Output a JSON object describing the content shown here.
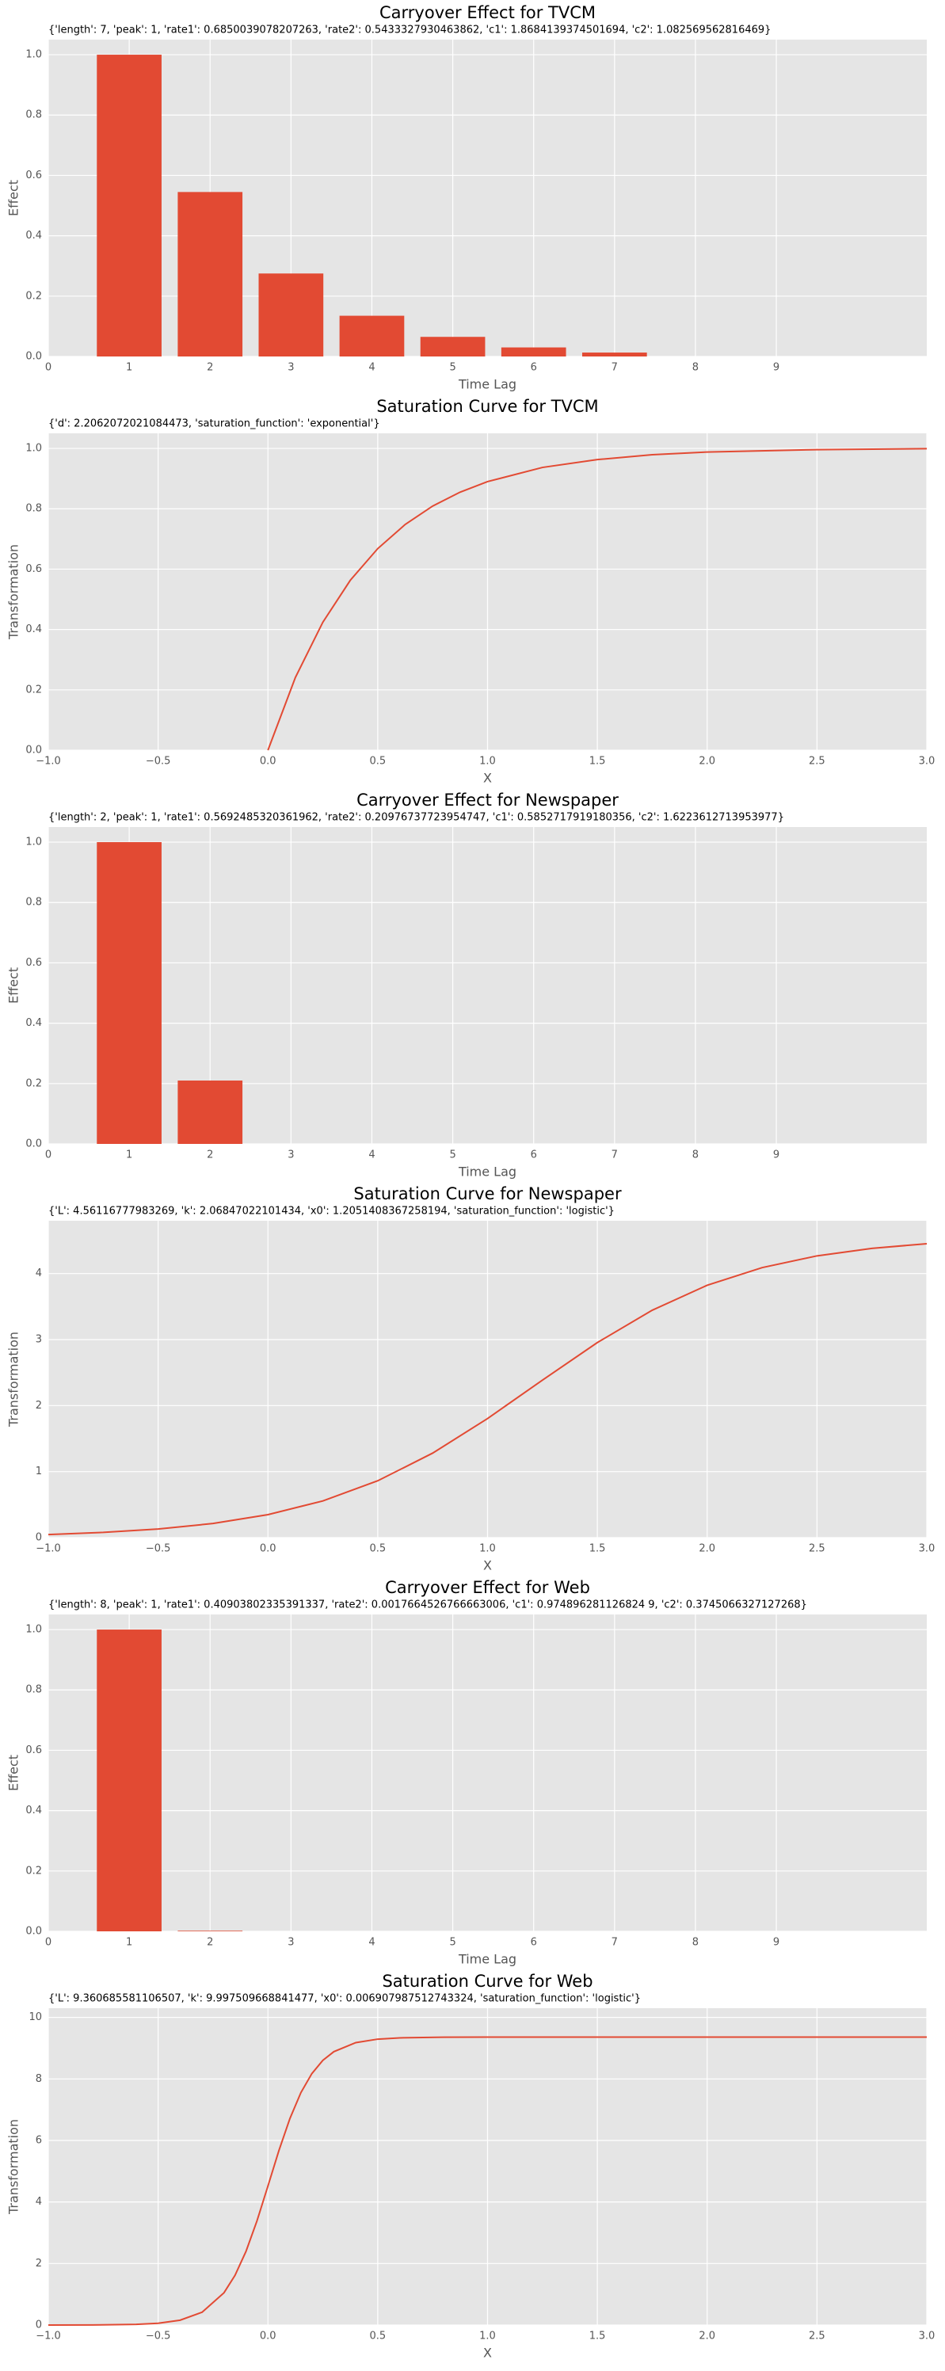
{
  "chart_data": [
    {
      "type": "bar",
      "title": "Carryover Effect for TVCM",
      "annotation": "{'length': 7, 'peak': 1, 'rate1': 0.6850039078207263, 'rate2': 0.5433327930463862, 'c1': 1.8684139374501694, 'c2': 1.082569562816469}",
      "xlabel": "Time Lag",
      "ylabel": "Effect",
      "x": [
        1,
        2,
        3,
        4,
        5,
        6,
        7
      ],
      "values": [
        1.0,
        0.545,
        0.275,
        0.135,
        0.065,
        0.03,
        0.013
      ],
      "color": "#e24a33",
      "grid": true,
      "xlim": [
        0,
        10.86
      ],
      "ylim": [
        0,
        1.05
      ],
      "xticks": [
        0,
        1,
        2,
        3,
        4,
        5,
        6,
        7,
        8,
        9
      ],
      "yticks": [
        {
          "value": 0,
          "label": "0.0"
        },
        {
          "value": 0.2,
          "label": "0.2"
        },
        {
          "value": 0.4,
          "label": "0.4"
        },
        {
          "value": 0.6,
          "label": "0.6"
        },
        {
          "value": 0.8,
          "label": "0.8"
        },
        {
          "value": 1,
          "label": "1.0"
        }
      ]
    },
    {
      "type": "line",
      "title": "Saturation Curve for TVCM",
      "annotation": "{'d': 2.2062072021084473, 'saturation_function': 'exponential'}",
      "xlabel": "X",
      "ylabel": "Transformation",
      "x": [
        0,
        0.125,
        0.25,
        0.375,
        0.5,
        0.625,
        0.75,
        0.875,
        1.0,
        1.25,
        1.5,
        1.75,
        2.0,
        2.5,
        3.0
      ],
      "values": [
        0,
        0.241,
        0.424,
        0.563,
        0.668,
        0.748,
        0.809,
        0.855,
        0.89,
        0.937,
        0.963,
        0.979,
        0.988,
        0.996,
        0.999
      ],
      "color": "#e24a33",
      "grid": true,
      "xlim": [
        -1,
        3
      ],
      "ylim": [
        0,
        1.05
      ],
      "xticks": [
        {
          "value": -1,
          "label": "−1.0"
        },
        {
          "value": -0.5,
          "label": "−0.5"
        },
        {
          "value": 0,
          "label": "0.0"
        },
        {
          "value": 0.5,
          "label": "0.5"
        },
        {
          "value": 1,
          "label": "1.0"
        },
        {
          "value": 1.5,
          "label": "1.5"
        },
        {
          "value": 2,
          "label": "2.0"
        },
        {
          "value": 2.5,
          "label": "2.5"
        },
        {
          "value": 3,
          "label": "3.0"
        }
      ],
      "yticks": [
        {
          "value": 0,
          "label": "0.0"
        },
        {
          "value": 0.2,
          "label": "0.2"
        },
        {
          "value": 0.4,
          "label": "0.4"
        },
        {
          "value": 0.6,
          "label": "0.6"
        },
        {
          "value": 0.8,
          "label": "0.8"
        },
        {
          "value": 1,
          "label": "1.0"
        }
      ]
    },
    {
      "type": "bar",
      "title": "Carryover Effect for Newspaper",
      "annotation": "{'length': 2, 'peak': 1, 'rate1': 0.5692485320361962, 'rate2': 0.20976737723954747, 'c1': 0.5852717919180356, 'c2': 1.6223612713953977}",
      "xlabel": "Time Lag",
      "ylabel": "Effect",
      "x": [
        1,
        2
      ],
      "values": [
        1.0,
        0.21
      ],
      "color": "#e24a33",
      "grid": true,
      "xlim": [
        0,
        10.86
      ],
      "ylim": [
        0,
        1.05
      ],
      "xticks": [
        0,
        1,
        2,
        3,
        4,
        5,
        6,
        7,
        8,
        9
      ],
      "yticks": [
        {
          "value": 0,
          "label": "0.0"
        },
        {
          "value": 0.2,
          "label": "0.2"
        },
        {
          "value": 0.4,
          "label": "0.4"
        },
        {
          "value": 0.6,
          "label": "0.6"
        },
        {
          "value": 0.8,
          "label": "0.8"
        },
        {
          "value": 1,
          "label": "1.0"
        }
      ]
    },
    {
      "type": "line",
      "title": "Saturation Curve for Newspaper",
      "annotation": "{'L': 4.56116777983269, 'k': 2.06847022101434, 'x0': 1.2051408367258194, 'saturation_function': 'logistic'}",
      "xlabel": "X",
      "ylabel": "Transformation",
      "x": [
        -1,
        -0.75,
        -0.5,
        -0.25,
        0,
        0.25,
        0.5,
        0.75,
        1.0,
        1.25,
        1.5,
        1.75,
        2.0,
        2.25,
        2.5,
        2.75,
        3.0
      ],
      "values": [
        0.047,
        0.079,
        0.13,
        0.214,
        0.348,
        0.556,
        0.861,
        1.28,
        1.804,
        2.386,
        2.955,
        3.445,
        3.823,
        4.09,
        4.268,
        4.382,
        4.452
      ],
      "color": "#e24a33",
      "grid": true,
      "xlim": [
        -1,
        3
      ],
      "ylim": [
        0,
        4.8
      ],
      "xticks": [
        {
          "value": -1,
          "label": "−1.0"
        },
        {
          "value": -0.5,
          "label": "−0.5"
        },
        {
          "value": 0,
          "label": "0.0"
        },
        {
          "value": 0.5,
          "label": "0.5"
        },
        {
          "value": 1,
          "label": "1.0"
        },
        {
          "value": 1.5,
          "label": "1.5"
        },
        {
          "value": 2,
          "label": "2.0"
        },
        {
          "value": 2.5,
          "label": "2.5"
        },
        {
          "value": 3,
          "label": "3.0"
        }
      ],
      "yticks": [
        0,
        1,
        2,
        3,
        4
      ]
    },
    {
      "type": "bar",
      "title": "Carryover Effect for Web",
      "annotation": "{'length': 8, 'peak': 1, 'rate1': 0.40903802335391337, 'rate2': 0.0017664526766663006, 'c1': 0.974896281126824 9, 'c2': 0.3745066327127268}",
      "xlabel": "Time Lag",
      "ylabel": "Effect",
      "x": [
        1,
        2
      ],
      "values": [
        1.0,
        0.002
      ],
      "color": "#e24a33",
      "grid": true,
      "xlim": [
        0,
        10.86
      ],
      "ylim": [
        0,
        1.05
      ],
      "xticks": [
        0,
        1,
        2,
        3,
        4,
        5,
        6,
        7,
        8,
        9
      ],
      "yticks": [
        {
          "value": 0,
          "label": "0.0"
        },
        {
          "value": 0.2,
          "label": "0.2"
        },
        {
          "value": 0.4,
          "label": "0.4"
        },
        {
          "value": 0.6,
          "label": "0.6"
        },
        {
          "value": 0.8,
          "label": "0.8"
        },
        {
          "value": 1,
          "label": "1.0"
        }
      ]
    },
    {
      "type": "line",
      "title": "Saturation Curve for Web",
      "annotation": "{'L': 9.360685581106507, 'k': 9.997509668841477, 'x0': 0.006907987512743324, 'saturation_function': 'logistic'}",
      "xlabel": "X",
      "ylabel": "Transformation",
      "x": [
        -1,
        -0.8,
        -0.6,
        -0.5,
        -0.4,
        -0.3,
        -0.2,
        -0.15,
        -0.1,
        -0.05,
        0,
        0.05,
        0.1,
        0.15,
        0.2,
        0.25,
        0.3,
        0.4,
        0.5,
        0.6,
        0.8,
        1.0,
        1.5,
        2.0,
        2.5,
        3.0
      ],
      "values": [
        0.0004,
        0.003,
        0.022,
        0.059,
        0.158,
        0.416,
        1.05,
        1.614,
        2.393,
        3.384,
        4.519,
        5.673,
        6.713,
        7.554,
        8.174,
        8.604,
        8.886,
        9.18,
        9.294,
        9.336,
        9.357,
        9.36,
        9.361,
        9.361,
        9.361,
        9.361
      ],
      "color": "#e24a33",
      "grid": true,
      "xlim": [
        -1,
        3
      ],
      "ylim": [
        0,
        10.3
      ],
      "xticks": [
        {
          "value": -1,
          "label": "−1.0"
        },
        {
          "value": -0.5,
          "label": "−0.5"
        },
        {
          "value": 0,
          "label": "0.0"
        },
        {
          "value": 0.5,
          "label": "0.5"
        },
        {
          "value": 1,
          "label": "1.0"
        },
        {
          "value": 1.5,
          "label": "1.5"
        },
        {
          "value": 2,
          "label": "2.0"
        },
        {
          "value": 2.5,
          "label": "2.5"
        },
        {
          "value": 3,
          "label": "3.0"
        }
      ],
      "yticks": [
        0,
        2,
        4,
        6,
        8,
        10
      ]
    }
  ]
}
